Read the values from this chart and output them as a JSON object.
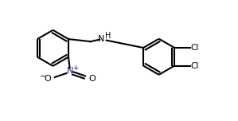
{
  "bg_color": "#ffffff",
  "line_color": "#000000",
  "atom_color": "#000000",
  "nitrogen_color": "#1a1a6e",
  "fig_width": 2.99,
  "fig_height": 1.52,
  "dpi": 100,
  "lw": 1.5,
  "ring_r": 0.72,
  "xlim": [
    0,
    9.5
  ],
  "ylim": [
    0,
    4.8
  ]
}
